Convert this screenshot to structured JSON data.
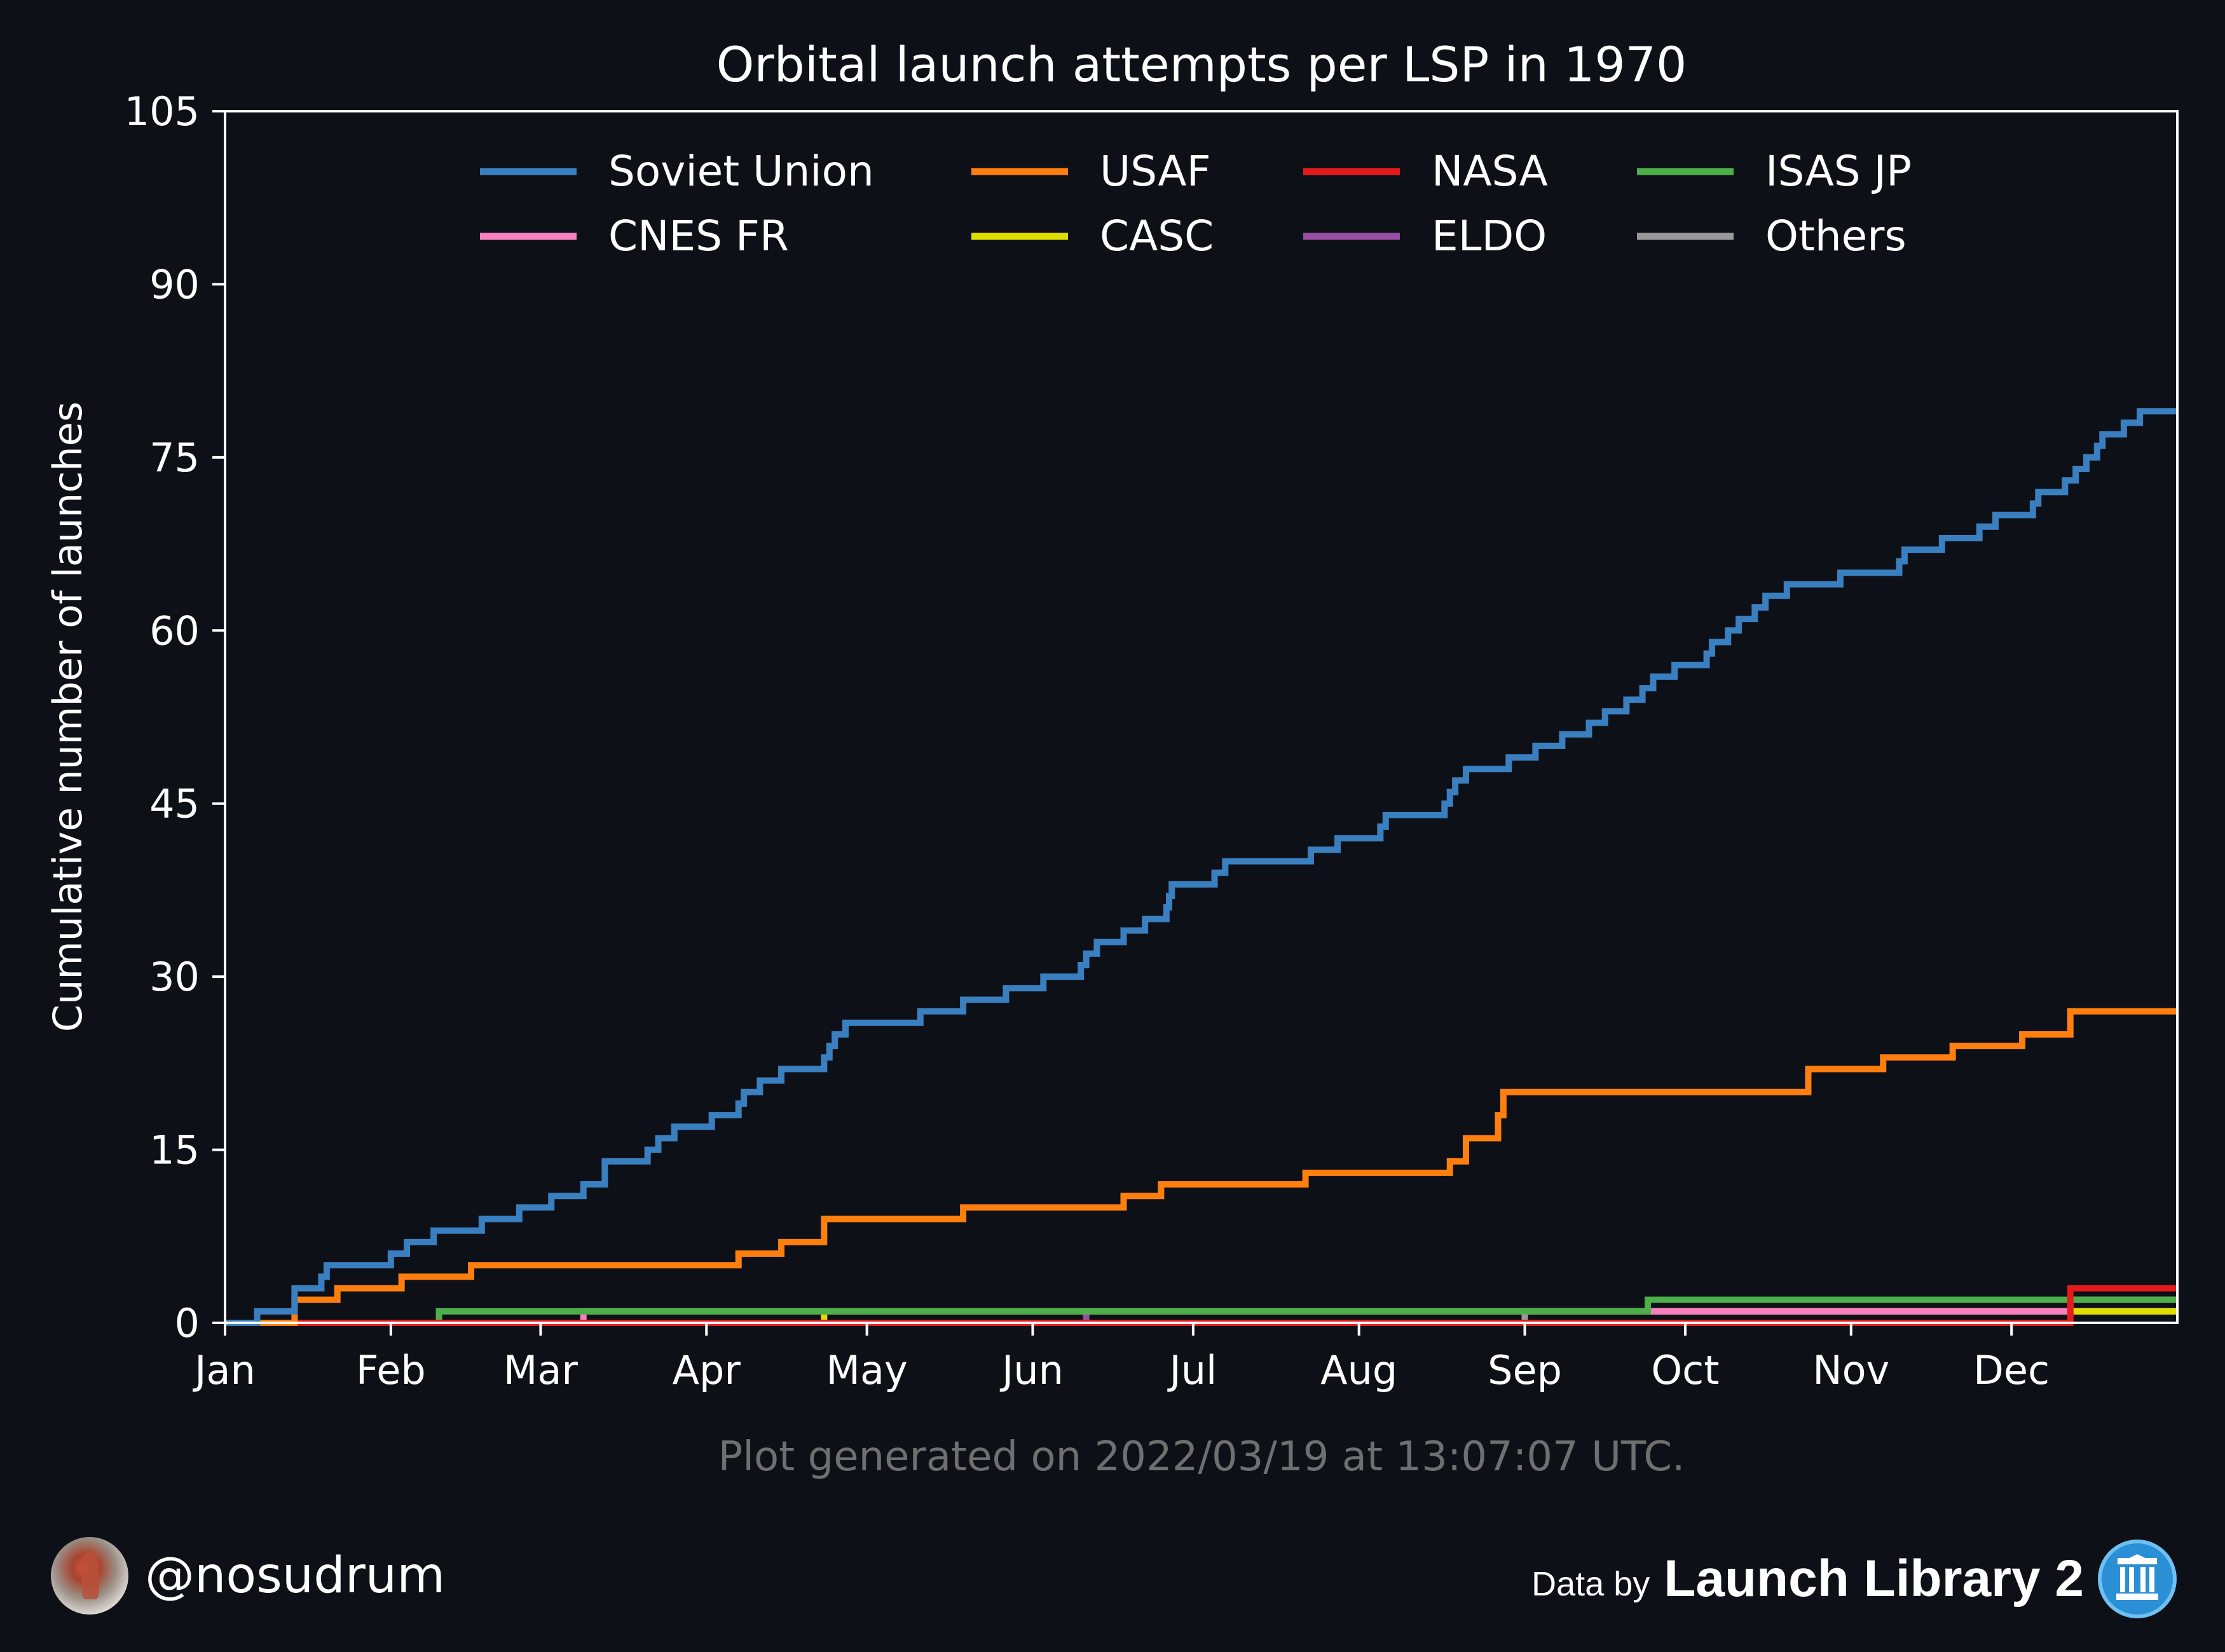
{
  "chart_data": {
    "type": "line",
    "step": true,
    "title": "Orbital launch attempts per LSP in 1970",
    "ylabel": "Cumulative number of launches",
    "xlabel": "",
    "xlim": [
      0,
      365
    ],
    "ylim": [
      0,
      105
    ],
    "yticks": [
      "0",
      "15",
      "30",
      "45",
      "60",
      "75",
      "90",
      "105"
    ],
    "ytick_values": [
      0,
      15,
      30,
      45,
      60,
      75,
      90,
      105
    ],
    "xticks": [
      {
        "label": "Jan",
        "day": 0
      },
      {
        "label": "Feb",
        "day": 31
      },
      {
        "label": "Mar",
        "day": 59
      },
      {
        "label": "Apr",
        "day": 90
      },
      {
        "label": "May",
        "day": 120
      },
      {
        "label": "Jun",
        "day": 151
      },
      {
        "label": "Jul",
        "day": 181
      },
      {
        "label": "Aug",
        "day": 212
      },
      {
        "label": "Sep",
        "day": 243
      },
      {
        "label": "Oct",
        "day": 273
      },
      {
        "label": "Nov",
        "day": 304
      },
      {
        "label": "Dec",
        "day": 334
      }
    ],
    "grid": false,
    "legend_position": "top-center",
    "x_unit": "day of year",
    "series": [
      {
        "name": "Soviet Union",
        "color": "#3a7fbf",
        "x": [
          0,
          6,
          13,
          18,
          19,
          31,
          34,
          39,
          48,
          55,
          61,
          67,
          71,
          79,
          81,
          84,
          91,
          96,
          97,
          100,
          104,
          112,
          113,
          114,
          116,
          130,
          138,
          146,
          153,
          160,
          161,
          163,
          168,
          172,
          176,
          176.5,
          177,
          185,
          187,
          203,
          208,
          216,
          217,
          228,
          229,
          230,
          232,
          240,
          245,
          250,
          255,
          258,
          262,
          265,
          267,
          271,
          277,
          278,
          281,
          283,
          286,
          288,
          292,
          302,
          313,
          314,
          321,
          328,
          331,
          338,
          339,
          344,
          346,
          348,
          350,
          351,
          355,
          358,
          365
        ],
        "y": [
          0,
          1,
          3,
          4,
          5,
          6,
          7,
          8,
          9,
          10,
          11,
          12,
          14,
          15,
          16,
          17,
          18,
          19,
          20,
          21,
          22,
          23,
          24,
          25,
          26,
          27,
          28,
          29,
          30,
          31,
          32,
          33,
          34,
          35,
          36,
          37,
          38,
          39,
          40,
          41,
          42,
          43,
          44,
          45,
          46,
          47,
          48,
          49,
          50,
          51,
          52,
          53,
          54,
          55,
          56,
          57,
          58,
          59,
          60,
          61,
          62,
          63,
          64,
          65,
          66,
          67,
          68,
          69,
          70,
          71,
          72,
          73,
          74,
          75,
          76,
          77,
          78,
          79,
          79
        ]
      },
      {
        "name": "USAF",
        "color": "#ff7f0e",
        "x": [
          0,
          13,
          21,
          33,
          46,
          96,
          104,
          112,
          138,
          168,
          175,
          202,
          229,
          232,
          238,
          239,
          296,
          310,
          323,
          336,
          345,
          365
        ],
        "y": [
          0,
          2,
          3,
          4,
          5,
          6,
          7,
          9,
          10,
          11,
          12,
          13,
          14,
          16,
          18,
          20,
          22,
          23,
          24,
          25,
          27,
          27
        ]
      },
      {
        "name": "NASA",
        "color": "#e41a1c",
        "x": [
          0,
          345,
          365
        ],
        "y": [
          0,
          3,
          3
        ]
      },
      {
        "name": "ISAS JP",
        "color": "#4daf4a",
        "x": [
          0,
          40,
          266,
          365
        ],
        "y": [
          0,
          1,
          2,
          2
        ]
      },
      {
        "name": "CNES FR",
        "color": "#f781bf",
        "x": [
          0,
          67,
          345,
          365
        ],
        "y": [
          0,
          1,
          2,
          2
        ]
      },
      {
        "name": "CASC",
        "color": "#dede00",
        "x": [
          0,
          112,
          365
        ],
        "y": [
          0,
          1,
          1
        ]
      },
      {
        "name": "ELDO",
        "color": "#984ea3",
        "x": [
          0,
          161,
          365
        ],
        "y": [
          0,
          1,
          1
        ]
      },
      {
        "name": "Others",
        "color": "#999999",
        "x": [
          0,
          243,
          365
        ],
        "y": [
          0,
          1,
          1
        ]
      }
    ],
    "legend_order": [
      "Soviet Union",
      "USAF",
      "NASA",
      "ISAS JP",
      "CNES FR",
      "CASC",
      "ELDO",
      "Others"
    ],
    "annotation": "Plot generated on 2022/03/19 at 13:07:07 UTC."
  },
  "footer": {
    "handle": "@nosudrum",
    "data_by": "Data by",
    "source": "Launch Library 2"
  },
  "colors": {
    "background": "#0d1017",
    "text": "#ffffff",
    "muted_text": "#6f6f6f"
  }
}
